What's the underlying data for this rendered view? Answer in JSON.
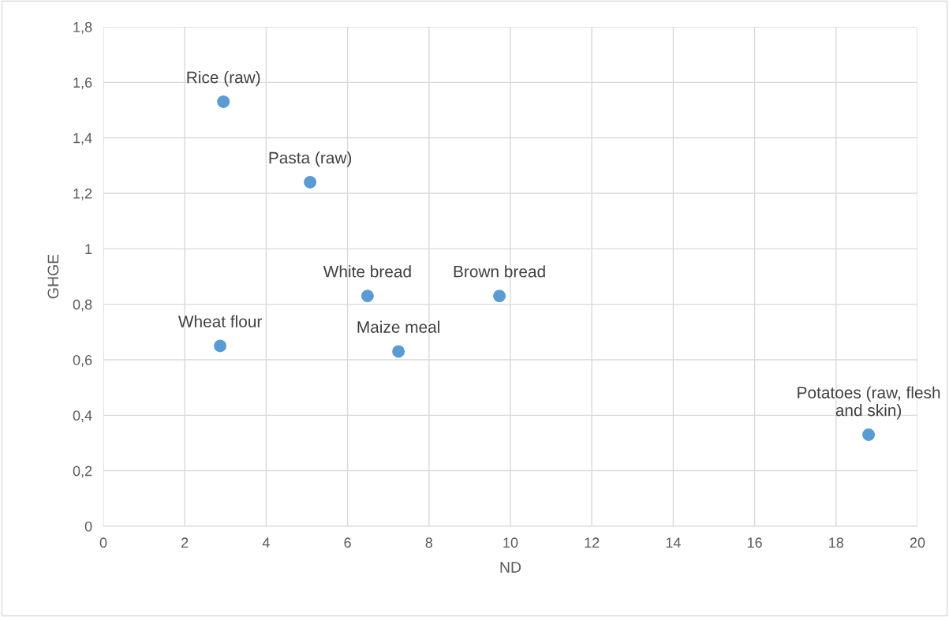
{
  "chart_data": {
    "type": "scatter",
    "xlabel": "ND",
    "ylabel": "GHGE",
    "series": [
      {
        "color": "#5b9bd5",
        "x": [
          2.95,
          5.08,
          6.49,
          9.73,
          2.87,
          7.25,
          18.8
        ],
        "values": [
          1.53,
          1.24,
          0.83,
          0.83,
          0.65,
          0.63,
          0.33
        ]
      }
    ],
    "marker": "circle",
    "grid": true,
    "legend": false,
    "xlim": [
      0,
      20
    ],
    "xticks": [
      0,
      2,
      4,
      6,
      8,
      10,
      12,
      14,
      16,
      18,
      20
    ],
    "ylim": [
      0,
      1.8
    ],
    "yticks": [
      0,
      {
        "value": 0.2,
        "label": "0,2"
      },
      {
        "value": 0.4,
        "label": "0,4"
      },
      {
        "value": 0.6,
        "label": "0,6"
      },
      {
        "value": 0.8,
        "label": "0,8"
      },
      1,
      {
        "value": 1.2,
        "label": "1,2"
      },
      {
        "value": 1.4,
        "label": "1,4"
      },
      {
        "value": 1.6,
        "label": "1,6"
      },
      {
        "value": 1.8,
        "label": "1,8"
      }
    ],
    "annotations": [
      {
        "text": "Rice (raw)",
        "x": 2.95,
        "y": 1.53
      },
      {
        "text": "Pasta (raw)",
        "x": 5.08,
        "y": 1.24
      },
      {
        "text": "White bread",
        "x": 6.49,
        "y": 0.83
      },
      {
        "text": "Brown bread",
        "x": 9.73,
        "y": 0.83
      },
      {
        "text": "Wheat flour",
        "x": 2.87,
        "y": 0.65
      },
      {
        "text": "Maize meal",
        "x": 7.25,
        "y": 0.63
      },
      {
        "text": "Potatoes (raw, flesh\nand skin)",
        "x": 18.8,
        "y": 0.33
      }
    ]
  }
}
